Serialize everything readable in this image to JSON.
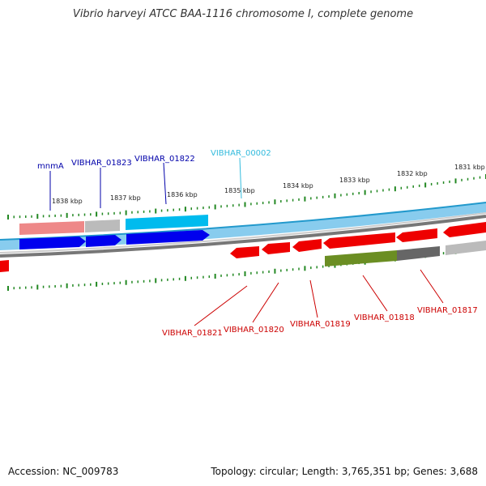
{
  "title": "Vibrio harveyi ATCC BAA-1116 chromosome I, complete genome",
  "footer": {
    "accession": "Accession: NC_009783",
    "summary": "Topology: circular; Length: 3,765,351 bp; Genes: 3,688"
  },
  "scale_labels": [
    "1838 kbp",
    "1837 kbp",
    "1836 kbp",
    "1835 kbp",
    "1834 kbp",
    "1833 kbp",
    "1832 kbp",
    "1831 kbp"
  ],
  "gene_labels_upper": [
    {
      "text": "mnmA",
      "color": "#0000aa"
    },
    {
      "text": "VIBHAR_01823",
      "color": "#0000aa"
    },
    {
      "text": "VIBHAR_01822",
      "color": "#0000aa"
    },
    {
      "text": "VIBHAR_00002",
      "color": "#33bbdd"
    }
  ],
  "gene_labels_lower": [
    {
      "text": "VIBHAR_01821",
      "color": "#cc0000"
    },
    {
      "text": "VIBHAR_01820",
      "color": "#cc0000"
    },
    {
      "text": "VIBHAR_01819",
      "color": "#cc0000"
    },
    {
      "text": "VIBHAR_01818",
      "color": "#cc0000"
    },
    {
      "text": "VIBHAR_01817",
      "color": "#cc0000"
    }
  ],
  "colors": {
    "forward_cds": "#0000ee",
    "forward_rna": "#00bbee",
    "reverse_cds": "#ee0000",
    "backbone": "#777777",
    "ticks": "#228822",
    "pink_feature": "#ee8888",
    "olive_feature": "#6b8e23",
    "grey_feature": "#aaaaaa"
  }
}
